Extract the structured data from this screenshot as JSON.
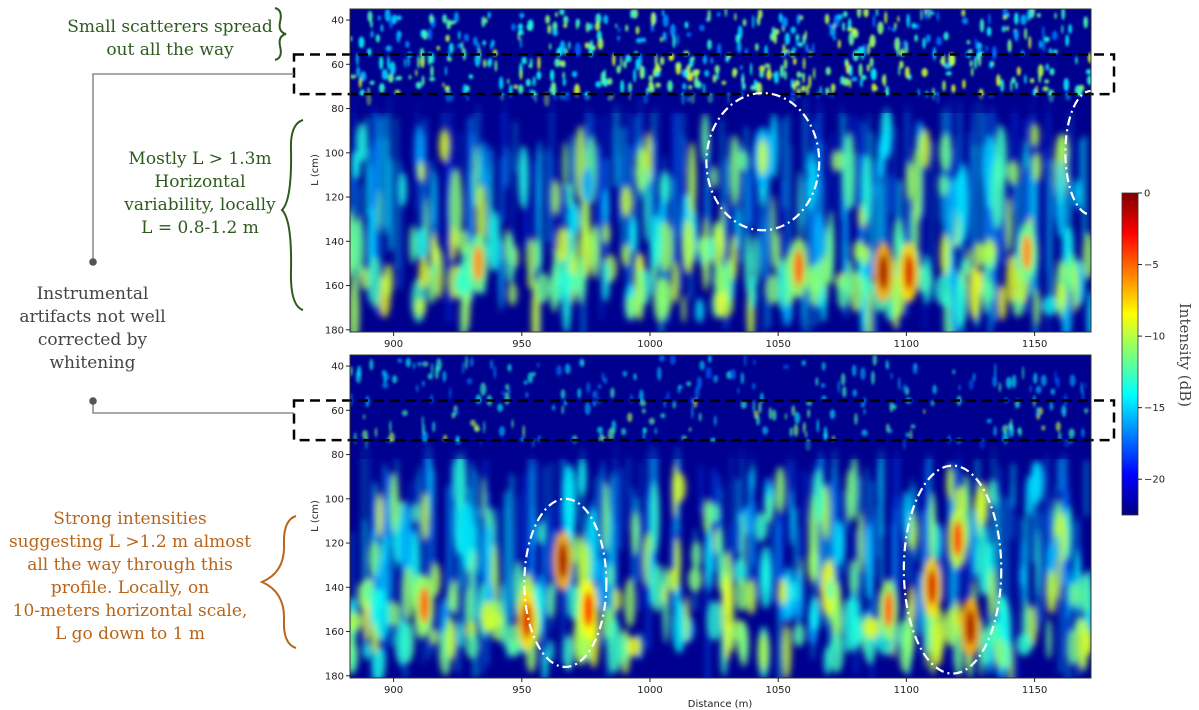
{
  "colors": {
    "annotation_green": "#2f5a1e",
    "annotation_gray": "#444444",
    "annotation_orange": "#b8651a",
    "colormap": "jet"
  },
  "annotations": {
    "scatterers": [
      "Small scatterers spread",
      "out all the way"
    ],
    "horizontal": [
      "Mostly L > 1.3m",
      "Horizontal",
      "variability, locally",
      "L = 0.8-1.2 m"
    ],
    "artifacts": [
      "Instrumental",
      "artifacts not well",
      "corrected by",
      "whitening"
    ],
    "strong": [
      "Strong intensities",
      "suggesting L >1.2 m almost",
      "all the way through this",
      "profile. Locally, on",
      "10-meters horizontal scale,",
      "L go down to 1 m"
    ]
  },
  "chart_data": [
    {
      "type": "heatmap",
      "panel": "top",
      "xlabel": "",
      "ylabel": "L (cm)",
      "xlim": [
        883,
        1172
      ],
      "ylim": [
        181,
        35
      ],
      "x_ticks": [
        "900",
        "950",
        "1000",
        "1050",
        "1100",
        "1150"
      ],
      "y_ticks": [
        "40",
        "60",
        "80",
        "100",
        "120",
        "140",
        "160",
        "180"
      ],
      "x_tick_values": [
        900,
        950,
        1000,
        1050,
        1100,
        1150
      ],
      "y_tick_values": [
        40,
        60,
        80,
        100,
        120,
        140,
        160,
        180
      ],
      "boxed_band": [
        56,
        73
      ],
      "highlight_ellipses": [
        {
          "x_center": 1044,
          "y_center": 104,
          "x_halfwidth": 22,
          "y_halfwidth": 31
        },
        {
          "x_center": 1172,
          "y_center": 100,
          "x_halfwidth": 10,
          "y_halfwidth": 28
        }
      ],
      "hotspots": [
        {
          "x": 1091,
          "y": 154,
          "intensity_db": -1
        },
        {
          "x": 1101,
          "y": 154,
          "intensity_db": -2
        },
        {
          "x": 1058,
          "y": 152,
          "intensity_db": -5
        },
        {
          "x": 933,
          "y": 150,
          "intensity_db": -6
        },
        {
          "x": 1147,
          "y": 145,
          "intensity_db": -6
        },
        {
          "x": 1044,
          "y": 102,
          "intensity_db": -10
        }
      ]
    },
    {
      "type": "heatmap",
      "panel": "bottom",
      "xlabel": "Distance (m)",
      "ylabel": "L (cm)",
      "xlim": [
        883,
        1172
      ],
      "ylim": [
        181,
        35
      ],
      "x_ticks": [
        "900",
        "950",
        "1000",
        "1050",
        "1100",
        "1150"
      ],
      "y_ticks": [
        "40",
        "60",
        "80",
        "100",
        "120",
        "140",
        "160",
        "180"
      ],
      "x_tick_values": [
        900,
        950,
        1000,
        1050,
        1100,
        1150
      ],
      "y_tick_values": [
        40,
        60,
        80,
        100,
        120,
        140,
        160,
        180
      ],
      "boxed_band": [
        56,
        73
      ],
      "highlight_ellipses": [
        {
          "x_center": 967,
          "y_center": 138,
          "x_halfwidth": 16,
          "y_halfwidth": 38
        },
        {
          "x_center": 1118,
          "y_center": 132,
          "x_halfwidth": 19,
          "y_halfwidth": 47
        }
      ],
      "hotspots": [
        {
          "x": 966,
          "y": 128,
          "intensity_db": -1
        },
        {
          "x": 952,
          "y": 155,
          "intensity_db": -2
        },
        {
          "x": 976,
          "y": 150,
          "intensity_db": -3
        },
        {
          "x": 1110,
          "y": 140,
          "intensity_db": -2
        },
        {
          "x": 1120,
          "y": 118,
          "intensity_db": -4
        },
        {
          "x": 1125,
          "y": 158,
          "intensity_db": -1
        },
        {
          "x": 912,
          "y": 148,
          "intensity_db": -5
        },
        {
          "x": 1093,
          "y": 150,
          "intensity_db": -5
        }
      ]
    },
    {
      "type": "colorbar",
      "label": "Intensity (dB)",
      "range": [
        -22.5,
        0
      ],
      "ticks": [
        "0",
        "−5",
        "−10",
        "−15",
        "−20"
      ],
      "tick_values": [
        0,
        -5,
        -10,
        -15,
        -20
      ]
    }
  ]
}
